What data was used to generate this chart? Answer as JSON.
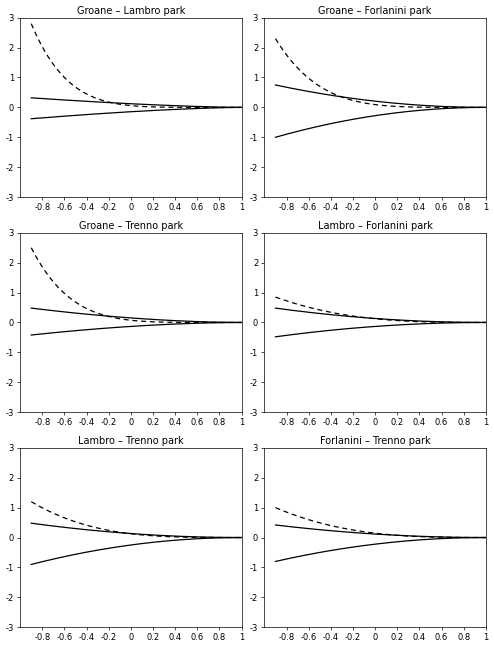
{
  "titles": [
    "Groane – Lambro park",
    "Groane – Forlanini park",
    "Groane – Trenno park",
    "Lambro – Forlanini park",
    "Lambro – Trenno park",
    "Forlanini – Trenno park"
  ],
  "xlim": [
    -1,
    1
  ],
  "ylim": [
    -3,
    3
  ],
  "xticks": [
    -0.8,
    -0.6,
    -0.4,
    -0.2,
    0,
    0.2,
    0.4,
    0.6,
    0.8,
    1
  ],
  "yticks": [
    -3,
    -2,
    -1,
    0,
    1,
    2,
    3
  ],
  "subplot_params": [
    {
      "dashed_scale": 2.8,
      "dashed_exp": 6.0,
      "upper_scale": 0.32,
      "upper_exp": 1.5,
      "lower_scale": -0.38,
      "lower_exp": 1.5
    },
    {
      "dashed_scale": 2.3,
      "dashed_exp": 5.0,
      "upper_scale": 0.75,
      "upper_exp": 2.0,
      "lower_scale": -1.0,
      "lower_exp": 2.0
    },
    {
      "dashed_scale": 2.5,
      "dashed_exp": 5.5,
      "upper_scale": 0.48,
      "upper_exp": 1.8,
      "lower_scale": -0.42,
      "lower_exp": 1.8
    },
    {
      "dashed_scale": 0.85,
      "dashed_exp": 3.0,
      "upper_scale": 0.48,
      "upper_exp": 2.0,
      "lower_scale": -0.48,
      "lower_exp": 2.0
    },
    {
      "dashed_scale": 1.2,
      "dashed_exp": 3.5,
      "upper_scale": 0.48,
      "upper_exp": 2.0,
      "lower_scale": -0.9,
      "lower_exp": 2.0
    },
    {
      "dashed_scale": 1.0,
      "dashed_exp": 3.0,
      "upper_scale": 0.42,
      "upper_exp": 2.0,
      "lower_scale": -0.8,
      "lower_exp": 2.0
    }
  ],
  "line_color": "black",
  "background_color": "white",
  "title_fontsize": 7,
  "tick_fontsize": 6,
  "figsize": [
    4.94,
    6.48
  ],
  "dpi": 100
}
